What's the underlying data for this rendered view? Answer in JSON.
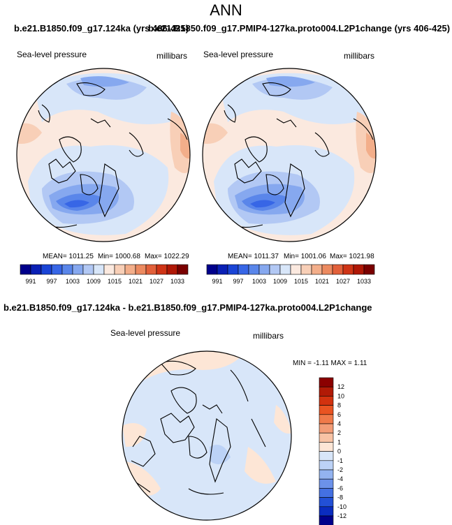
{
  "page_title": "ANN",
  "top_titles": {
    "left": "b.e21.B1850.f09_g17.124ka (yrs 406-425)",
    "right": "b.e21.B1850.f09_g17.PMIP4-127ka.proto004.L2P1change (yrs 406-425)"
  },
  "diff_title": "b.e21.B1850.f09_g17.124ka - b.e21.B1850.f09_g17.PMIP4-127ka.proto004.L2P1change",
  "panels": [
    {
      "variable": "Sea-level pressure",
      "units": "millibars",
      "stats": {
        "mean": "MEAN= 1011.25",
        "min": "Min= 1000.68",
        "max": "Max= 1022.29"
      }
    },
    {
      "variable": "Sea-level pressure",
      "units": "millibars",
      "stats": {
        "mean": "MEAN= 1011.37",
        "min": "Min= 1001.06",
        "max": "Max= 1021.98"
      }
    },
    {
      "variable": "Sea-level pressure",
      "units": "millibars",
      "stats": {
        "minmax": "MIN =  -1.11 MAX =   1.11"
      }
    }
  ],
  "colorbar_abs": {
    "labels": [
      "991",
      "997",
      "1003",
      "1009",
      "1015",
      "1021",
      "1027",
      "1033"
    ],
    "colors": [
      "#00008b",
      "#0a20b5",
      "#1a44d6",
      "#3766e6",
      "#5a86ea",
      "#86a8ef",
      "#b2c8f4",
      "#d8e6f9",
      "#fbe9df",
      "#f8cfb7",
      "#f3ae8a",
      "#ec8a60",
      "#e2603a",
      "#cf3416",
      "#b01806",
      "#7a0000"
    ]
  },
  "colorbar_diff": {
    "labels": [
      "12",
      "10",
      "8",
      "6",
      "4",
      "2",
      "1",
      "0",
      "-1",
      "-2",
      "-4",
      "-6",
      "-8",
      "-10",
      "-12"
    ],
    "colors": [
      "#8b0000",
      "#b11a06",
      "#d2320f",
      "#e95422",
      "#f07a4a",
      "#f39d77",
      "#f8c3a5",
      "#fde6d6",
      "#d8e6f9",
      "#bcd2f6",
      "#93b3f0",
      "#6c92ea",
      "#4470e2",
      "#2250d6",
      "#0a2cbf",
      "#00008b"
    ]
  },
  "chart_data": [
    {
      "type": "heatmap",
      "title": "b.e21.B1850.f09_g17.124ka (yrs 406-425)",
      "field": "Sea-level pressure",
      "units": "millibars",
      "projection": "north polar stereographic",
      "mean": 1011.25,
      "min": 1000.68,
      "max": 1022.29,
      "levels": [
        991,
        994,
        997,
        1000,
        1003,
        1006,
        1009,
        1012,
        1015,
        1018,
        1021,
        1024,
        1027,
        1030,
        1033
      ]
    },
    {
      "type": "heatmap",
      "title": "b.e21.B1850.f09_g17.PMIP4-127ka.proto004.L2P1change (yrs 406-425)",
      "field": "Sea-level pressure",
      "units": "millibars",
      "projection": "north polar stereographic",
      "mean": 1011.37,
      "min": 1001.06,
      "max": 1021.98,
      "levels": [
        991,
        994,
        997,
        1000,
        1003,
        1006,
        1009,
        1012,
        1015,
        1018,
        1021,
        1024,
        1027,
        1030,
        1033
      ]
    },
    {
      "type": "heatmap",
      "title": "b.e21.B1850.f09_g17.124ka - b.e21.B1850.f09_g17.PMIP4-127ka.proto004.L2P1change",
      "field": "Sea-level pressure",
      "units": "millibars",
      "projection": "north polar stereographic",
      "min": -1.11,
      "max": 1.11,
      "levels": [
        -12,
        -10,
        -8,
        -6,
        -4,
        -2,
        -1,
        0,
        1,
        2,
        4,
        6,
        8,
        10,
        12
      ]
    }
  ]
}
